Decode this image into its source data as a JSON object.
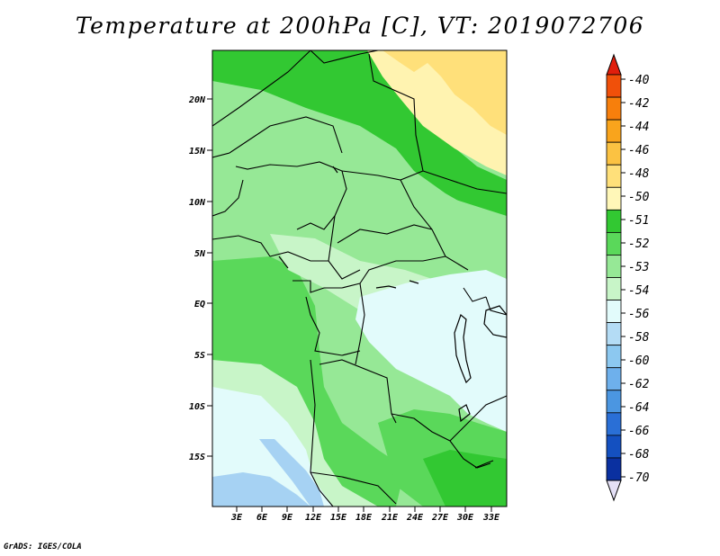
{
  "title": "Temperature at 200hPa [C], VT: 2019072706",
  "credit": "GrADS: IGES/COLA",
  "lat_axis": [
    "20N",
    "15N",
    "10N",
    "5N",
    "EQ",
    "5S",
    "10S",
    "15S"
  ],
  "lon_axis": [
    "3E",
    "6E",
    "9E",
    "12E",
    "15E",
    "18E",
    "21E",
    "24E",
    "27E",
    "30E",
    "33E"
  ],
  "legend": {
    "labels": [
      "-40",
      "-42",
      "-44",
      "-46",
      "-48",
      "-50",
      "-51",
      "-52",
      "-53",
      "-54",
      "-56",
      "-58",
      "-60",
      "-62",
      "-64",
      "-66",
      "-68",
      "-70"
    ],
    "colors": [
      "#e01e0c",
      "#f0500a",
      "#f77f0c",
      "#f9a41c",
      "#fbc242",
      "#ffe07a",
      "#fff7b8",
      "#32c832",
      "#5ad85a",
      "#96e896",
      "#c8f5c8",
      "#e2fbfb",
      "#b4dcf5",
      "#8cc8f0",
      "#6eb0ec",
      "#4b96e1",
      "#2a6fd6",
      "#1450c0",
      "#0a30a0",
      "#06106e"
    ],
    "under_color": "#e4e0f6"
  },
  "field_colors": {
    "yellow_dark": "#ffe07a",
    "yellow_light": "#fff3b0",
    "green_dark": "#32c832",
    "green_mid": "#5ad85a",
    "green_light": "#96e896",
    "green_pale": "#c8f5c8",
    "cyan_pale": "#e2fbfb",
    "blue_light": "#a6d2f3"
  }
}
